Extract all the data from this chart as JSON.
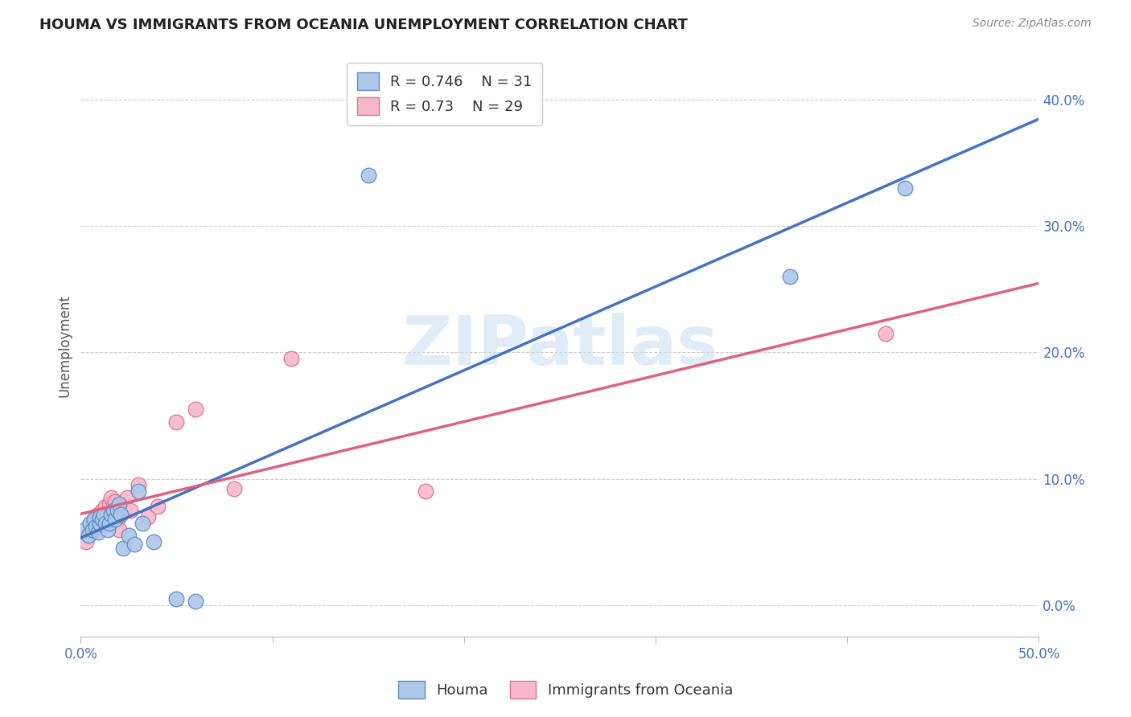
{
  "title": "HOUMA VS IMMIGRANTS FROM OCEANIA UNEMPLOYMENT CORRELATION CHART",
  "source": "Source: ZipAtlas.com",
  "ylabel": "Unemployment",
  "right_ytick_vals": [
    0.0,
    0.1,
    0.2,
    0.3,
    0.4
  ],
  "right_ytick_labels": [
    "0.0%",
    "10.0%",
    "20.0%",
    "30.0%",
    "40.0%"
  ],
  "xmin": 0.0,
  "xmax": 0.5,
  "ymin": -0.025,
  "ymax": 0.435,
  "houma_R": 0.746,
  "houma_N": 31,
  "oceania_R": 0.73,
  "oceania_N": 29,
  "houma_color": "#aec6e8",
  "houma_edge_color": "#5b8ec4",
  "houma_line_color": "#4472c4",
  "oceania_color": "#f8b8cc",
  "oceania_edge_color": "#e07090",
  "oceania_line_color": "#e06080",
  "legend_label_1": "Houma",
  "legend_label_2": "Immigrants from Oceania",
  "houma_x": [
    0.002,
    0.004,
    0.005,
    0.006,
    0.007,
    0.008,
    0.009,
    0.01,
    0.01,
    0.011,
    0.012,
    0.013,
    0.014,
    0.015,
    0.016,
    0.017,
    0.018,
    0.019,
    0.02,
    0.021,
    0.022,
    0.025,
    0.028,
    0.03,
    0.032,
    0.038,
    0.05,
    0.06,
    0.15,
    0.37,
    0.43
  ],
  "houma_y": [
    0.06,
    0.055,
    0.065,
    0.06,
    0.068,
    0.062,
    0.058,
    0.065,
    0.07,
    0.068,
    0.072,
    0.065,
    0.06,
    0.065,
    0.072,
    0.075,
    0.068,
    0.075,
    0.08,
    0.072,
    0.045,
    0.055,
    0.048,
    0.09,
    0.065,
    0.05,
    0.005,
    0.003,
    0.34,
    0.26,
    0.33
  ],
  "oceania_x": [
    0.003,
    0.005,
    0.006,
    0.007,
    0.008,
    0.009,
    0.01,
    0.011,
    0.012,
    0.013,
    0.014,
    0.015,
    0.016,
    0.017,
    0.018,
    0.019,
    0.02,
    0.022,
    0.024,
    0.026,
    0.03,
    0.035,
    0.04,
    0.05,
    0.06,
    0.08,
    0.11,
    0.18,
    0.42
  ],
  "oceania_y": [
    0.05,
    0.06,
    0.065,
    0.068,
    0.06,
    0.072,
    0.068,
    0.075,
    0.07,
    0.078,
    0.072,
    0.08,
    0.085,
    0.078,
    0.082,
    0.068,
    0.06,
    0.075,
    0.085,
    0.075,
    0.095,
    0.07,
    0.078,
    0.145,
    0.155,
    0.092,
    0.195,
    0.09,
    0.215
  ],
  "background_color": "#ffffff",
  "grid_color": "#cccccc",
  "watermark": "ZIPatlas"
}
